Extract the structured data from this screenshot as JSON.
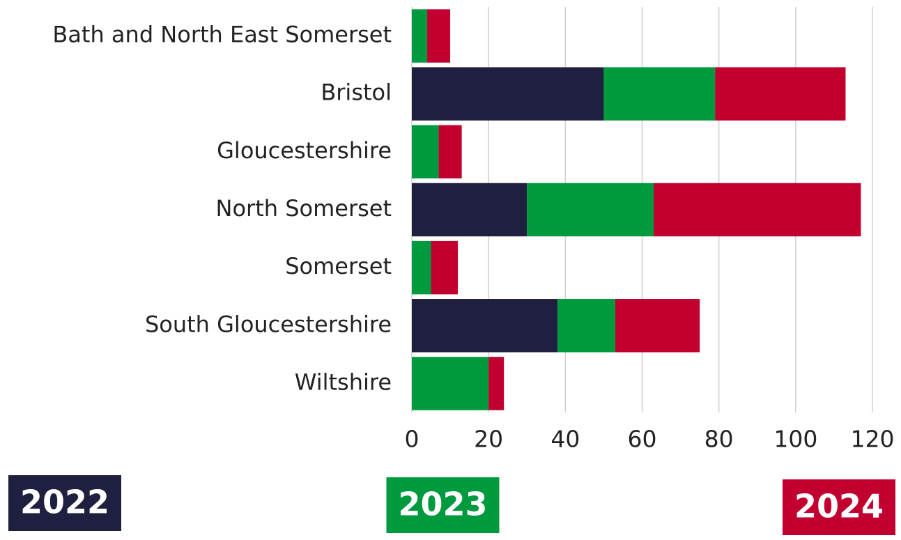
{
  "chart_data": {
    "type": "stacked-barh",
    "categories": [
      "Bath and North East Somerset",
      "Bristol",
      "Gloucestershire",
      "North Somerset",
      "Somerset",
      "South Gloucestershire",
      "Wiltshire"
    ],
    "series": [
      {
        "name": "2022",
        "color": "#1f1f40",
        "values": [
          0,
          50,
          0,
          30,
          0,
          38,
          0
        ]
      },
      {
        "name": "2023",
        "color": "#009a3e",
        "values": [
          4,
          29,
          7,
          33,
          5,
          15,
          20
        ]
      },
      {
        "name": "2024",
        "color": "#c20030",
        "values": [
          6,
          34,
          6,
          54,
          7,
          22,
          4
        ]
      }
    ],
    "xlim": [
      0,
      120
    ],
    "xticks": [
      0,
      20,
      40,
      60,
      80,
      100,
      120
    ],
    "grid": true,
    "legend": "bottom"
  }
}
